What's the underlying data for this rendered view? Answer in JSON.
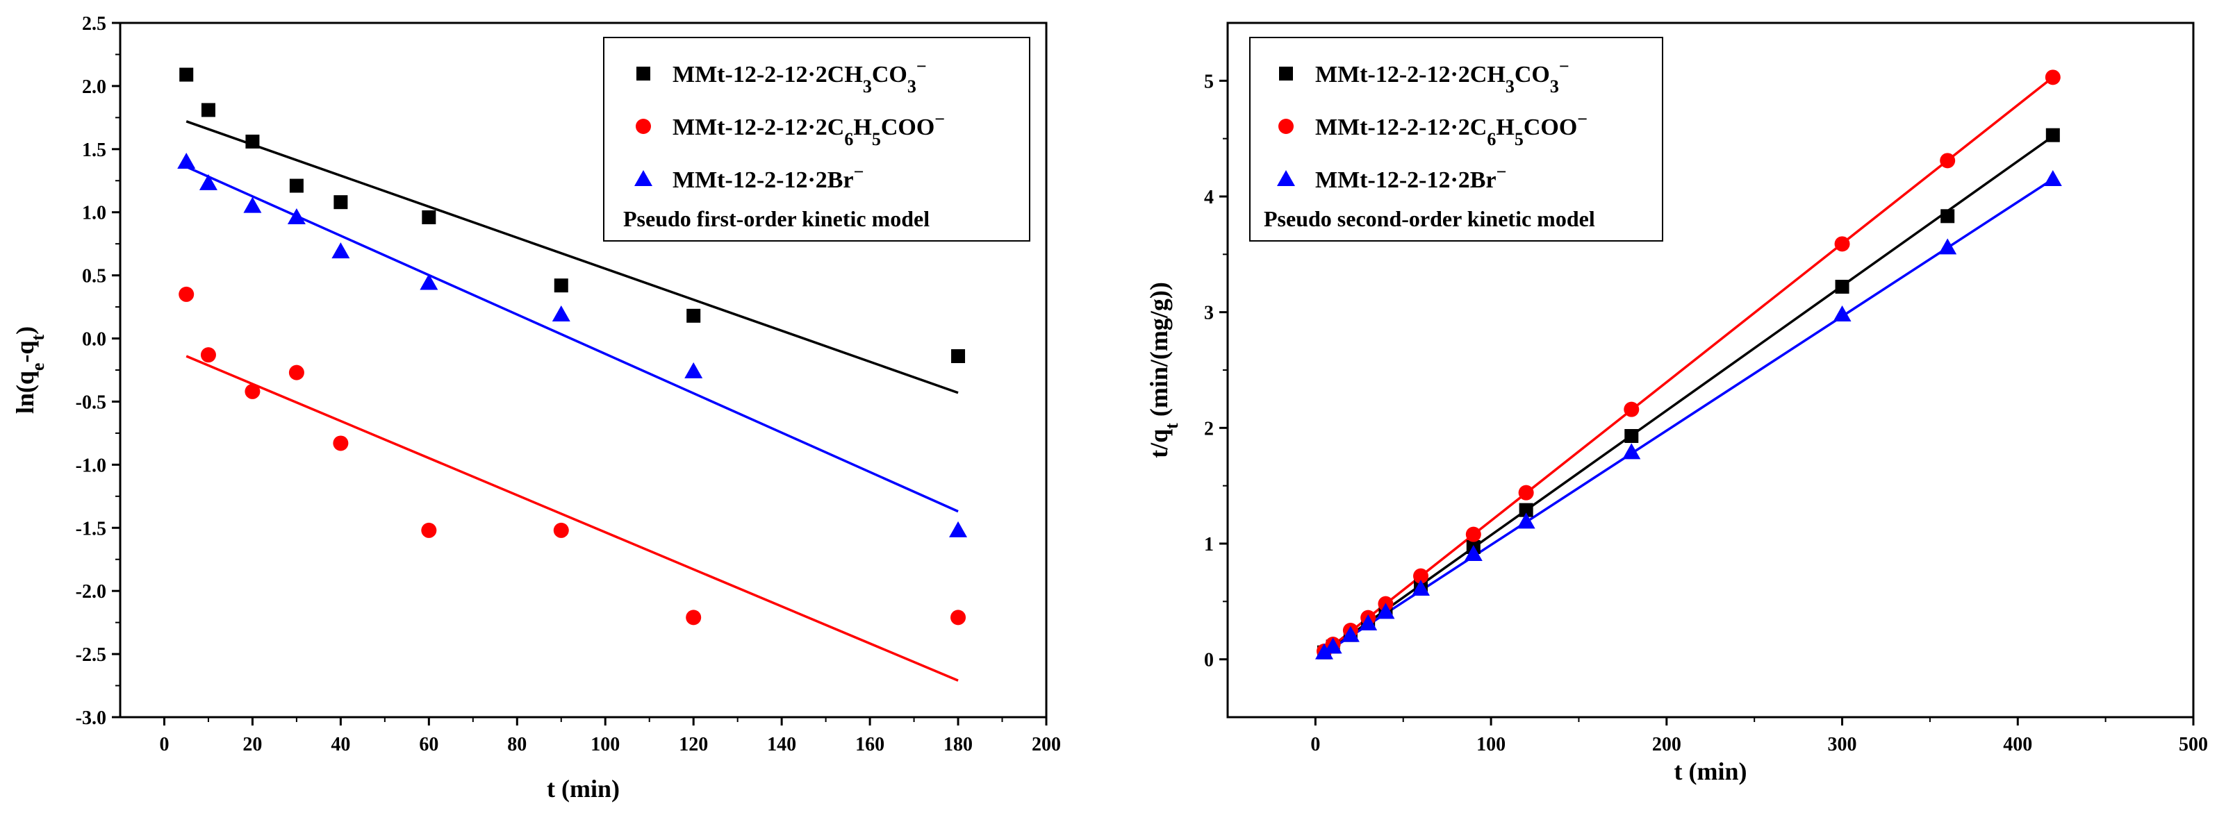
{
  "chart_data": [
    {
      "type": "scatter",
      "title": "",
      "xlabel": "t (min)",
      "ylabel": "ln(qe-qt)",
      "xlim": [
        -10,
        200
      ],
      "ylim": [
        -3.0,
        2.5
      ],
      "xticks": [
        0,
        20,
        40,
        60,
        80,
        100,
        120,
        140,
        160,
        180,
        200
      ],
      "yticks": [
        -3.0,
        -2.5,
        -2.0,
        -1.5,
        -1.0,
        -0.5,
        0.0,
        0.5,
        1.0,
        1.5,
        2.0,
        2.5
      ],
      "xtick_labels": [
        "0",
        "20",
        "40",
        "60",
        "80",
        "100",
        "120",
        "140",
        "160",
        "180",
        "200"
      ],
      "ytick_labels": [
        "-3.0",
        "-2.5",
        "-2.0",
        "-1.5",
        "-1.0",
        "-0.5",
        "0.0",
        "0.5",
        "1.0",
        "1.5",
        "2.0",
        "2.5"
      ],
      "model_label": "Pseudo first-order kinetic model",
      "legend_position": "top-right",
      "series": [
        {
          "name": "MMt-12-2-12·2CH3CO3⁻",
          "name_main": "MMt-12-2-12·2CH",
          "name_sub1": "3",
          "name_mid": "CO",
          "name_sub2": "3",
          "name_sup": "−",
          "marker": "square",
          "color": "#000000",
          "x": [
            5,
            10,
            20,
            30,
            40,
            60,
            90,
            120,
            180
          ],
          "y": [
            2.09,
            1.81,
            1.56,
            1.21,
            1.08,
            0.96,
            0.42,
            0.18,
            -0.14
          ],
          "fit": {
            "x": [
              5,
              180
            ],
            "y": [
              1.72,
              -0.43
            ]
          }
        },
        {
          "name": "MMt-12-2-12·2C6H5COO⁻",
          "name_main": "MMt-12-2-12·2C",
          "name_sub1": "6",
          "name_mid": "H",
          "name_sub2": "5",
          "name_tail": "COO",
          "name_sup": "−",
          "marker": "circle",
          "color": "#ff0000",
          "x": [
            5,
            10,
            20,
            30,
            40,
            60,
            90,
            120,
            180
          ],
          "y": [
            0.35,
            -0.13,
            -0.42,
            -0.27,
            -0.83,
            -1.52,
            -1.52,
            -2.21,
            -2.21
          ],
          "fit": {
            "x": [
              5,
              180
            ],
            "y": [
              -0.14,
              -2.71
            ]
          }
        },
        {
          "name": "MMt-12-2-12·2Br⁻",
          "name_main": "MMt-12-2-12·2Br",
          "name_sup": "−",
          "marker": "triangle",
          "color": "#0000ff",
          "x": [
            5,
            10,
            20,
            30,
            40,
            60,
            90,
            120,
            180
          ],
          "y": [
            1.4,
            1.23,
            1.05,
            0.96,
            0.69,
            0.44,
            0.19,
            -0.26,
            -1.52
          ],
          "fit": {
            "x": [
              5,
              180
            ],
            "y": [
              1.36,
              -1.37
            ]
          }
        }
      ]
    },
    {
      "type": "scatter",
      "title": "",
      "xlabel": "t (min)",
      "ylabel": "t/qt (min/(mg/g))",
      "xlim": [
        -50,
        500
      ],
      "ylim": [
        -0.5,
        5.5
      ],
      "xticks": [
        0,
        100,
        200,
        300,
        400,
        500
      ],
      "yticks": [
        0,
        1,
        2,
        3,
        4,
        5
      ],
      "xtick_labels": [
        "0",
        "100",
        "200",
        "300",
        "400",
        "500"
      ],
      "ytick_labels": [
        "0",
        "1",
        "2",
        "3",
        "4",
        "5"
      ],
      "model_label": "Pseudo second-order kinetic model",
      "legend_position": "top-left",
      "series": [
        {
          "name": "MMt-12-2-12·2CH3CO3⁻",
          "name_main": "MMt-12-2-12·2CH",
          "name_sub1": "3",
          "name_mid": "CO",
          "name_sub2": "3",
          "name_sup": "−",
          "marker": "square",
          "color": "#000000",
          "x": [
            5,
            10,
            20,
            30,
            40,
            60,
            90,
            120,
            180,
            300,
            360,
            420
          ],
          "y": [
            0.06,
            0.11,
            0.21,
            0.32,
            0.43,
            0.64,
            0.97,
            1.29,
            1.93,
            3.22,
            3.83,
            4.53
          ],
          "fit": {
            "x": [
              5,
              420
            ],
            "y": [
              0.05,
              4.52
            ]
          }
        },
        {
          "name": "MMt-12-2-12·2C6H5COO⁻",
          "name_main": "MMt-12-2-12·2C",
          "name_sub1": "6",
          "name_mid": "H",
          "name_sub2": "5",
          "name_tail": "COO",
          "name_sup": "−",
          "marker": "circle",
          "color": "#ff0000",
          "x": [
            5,
            10,
            20,
            30,
            40,
            60,
            90,
            120,
            180,
            300,
            360,
            420
          ],
          "y": [
            0.07,
            0.13,
            0.25,
            0.36,
            0.48,
            0.72,
            1.08,
            1.44,
            2.16,
            3.59,
            4.31,
            5.03
          ],
          "fit": {
            "x": [
              5,
              420
            ],
            "y": [
              0.06,
              5.03
            ]
          }
        },
        {
          "name": "MMt-12-2-12·2Br⁻",
          "name_main": "MMt-12-2-12·2Br",
          "name_sup": "−",
          "marker": "triangle",
          "color": "#0000ff",
          "x": [
            5,
            10,
            20,
            30,
            40,
            60,
            90,
            120,
            180,
            300,
            360,
            420
          ],
          "y": [
            0.06,
            0.11,
            0.21,
            0.31,
            0.41,
            0.61,
            0.91,
            1.19,
            1.79,
            2.98,
            3.56,
            4.15
          ],
          "fit": {
            "x": [
              5,
              420
            ],
            "y": [
              0.05,
              4.15
            ]
          }
        }
      ]
    }
  ]
}
